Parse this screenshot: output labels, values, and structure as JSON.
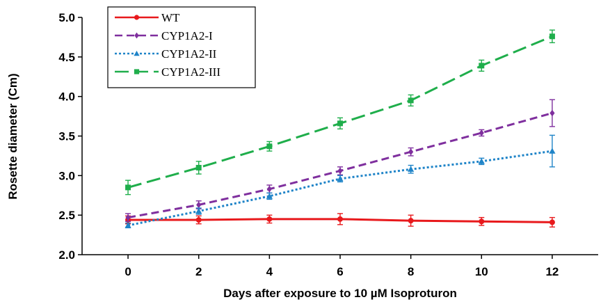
{
  "chart_data": {
    "type": "line",
    "title": "",
    "xlabel": "Days after exposure to 10 µM Isoproturon",
    "ylabel": "Rosette diameter (Cm)",
    "x": [
      0,
      2,
      4,
      6,
      8,
      10,
      12
    ],
    "x_tick_labels": [
      "0",
      "2",
      "4",
      "6",
      "8",
      "10",
      "12"
    ],
    "xlim": [
      -1.3,
      13.3
    ],
    "ylim": [
      2.0,
      5.0
    ],
    "y_ticks": [
      2.0,
      2.5,
      3.0,
      3.5,
      4.0,
      4.5,
      5.0
    ],
    "y_tick_labels": [
      "2.0",
      "2.5",
      "3.0",
      "3.5",
      "4.0",
      "4.5",
      "5.0"
    ],
    "grid": false,
    "legend_position": "top-left",
    "series": [
      {
        "name": "WT",
        "color": "#e8191c",
        "line_style": "solid",
        "marker": "circle",
        "values": [
          2.44,
          2.44,
          2.45,
          2.45,
          2.43,
          2.42,
          2.41
        ],
        "errors": [
          0.05,
          0.05,
          0.05,
          0.07,
          0.07,
          0.05,
          0.06
        ]
      },
      {
        "name": "CYP1A2-I",
        "color": "#7f2f9e",
        "line_style": "dashed",
        "marker": "diamond",
        "values": [
          2.47,
          2.63,
          2.83,
          3.06,
          3.3,
          3.54,
          3.79
        ],
        "errors": [
          0.05,
          0.05,
          0.05,
          0.05,
          0.05,
          0.04,
          0.17
        ]
      },
      {
        "name": "CYP1A2-II",
        "color": "#1f84c8",
        "line_style": "dotted",
        "marker": "triangle",
        "values": [
          2.37,
          2.55,
          2.74,
          2.96,
          3.08,
          3.18,
          3.31
        ],
        "errors": [
          0.03,
          0.04,
          0.04,
          0.04,
          0.05,
          0.04,
          0.2
        ]
      },
      {
        "name": "CYP1A2-III",
        "color": "#1fae4b",
        "line_style": "long-dash",
        "marker": "square",
        "values": [
          2.85,
          3.1,
          3.37,
          3.66,
          3.95,
          4.39,
          4.76
        ],
        "errors": [
          0.09,
          0.08,
          0.06,
          0.07,
          0.07,
          0.07,
          0.08
        ]
      }
    ]
  }
}
